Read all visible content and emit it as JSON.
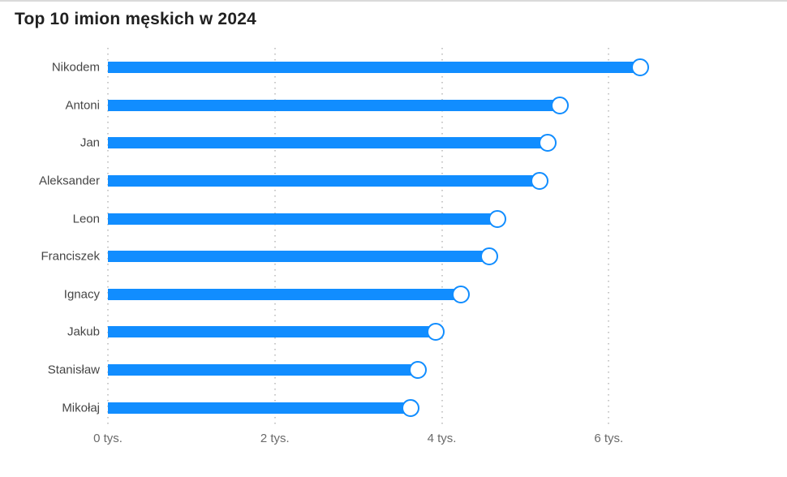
{
  "page": {
    "background": "#FFFFFF",
    "top_border_color": "#DADADA"
  },
  "colors": {
    "bar": "#118DFF",
    "dot_fill": "#FFFFFF",
    "dot_stroke": "#118DFF",
    "gridline": "#C9C9C9",
    "title_text": "#212121",
    "category_label_text": "#454545",
    "axis_label_text": "#6A6A6A"
  },
  "chart_data": {
    "type": "bar",
    "subtype": "horizontal-lollipop",
    "title": "Top 10 imion męskich w 2024",
    "categories": [
      "Nikodem",
      "Antoni",
      "Jan",
      "Aleksander",
      "Leon",
      "Franciszek",
      "Ignacy",
      "Jakub",
      "Stanisław",
      "Mikołaj"
    ],
    "values_tys": [
      6.38,
      5.41,
      5.27,
      5.17,
      4.67,
      4.57,
      4.23,
      3.93,
      3.71,
      3.63
    ],
    "unit": "tys.",
    "xlabel": "",
    "ylabel": "",
    "xlim": [
      0,
      8
    ],
    "x_ticks": [
      {
        "value": 0,
        "label": "0 tys."
      },
      {
        "value": 2,
        "label": "2 tys."
      },
      {
        "value": 4,
        "label": "4 tys."
      },
      {
        "value": 6,
        "label": "6 tys."
      }
    ],
    "grid": "vertical-dotted",
    "legend": "none"
  }
}
